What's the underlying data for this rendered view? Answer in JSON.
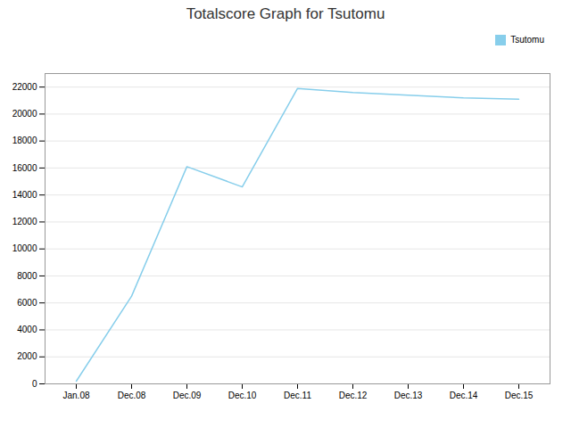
{
  "chart_data": {
    "type": "line",
    "title": "Totalscore Graph for Tsutomu",
    "categories": [
      "Jan.08",
      "Dec.08",
      "Dec.09",
      "Dec.10",
      "Dec.11",
      "Dec.12",
      "Dec.13",
      "Dec.14",
      "Dec.15"
    ],
    "series": [
      {
        "name": "Tsutomu",
        "color": "#87CEEB",
        "values": [
          200,
          6500,
          16100,
          14600,
          21900,
          21600,
          21400,
          21200,
          21100
        ]
      }
    ],
    "ylim": [
      0,
      23000
    ],
    "yticks": [
      0,
      2000,
      4000,
      6000,
      8000,
      10000,
      12000,
      14000,
      16000,
      18000,
      20000,
      22000
    ],
    "grid": true,
    "legend": "upper right"
  }
}
